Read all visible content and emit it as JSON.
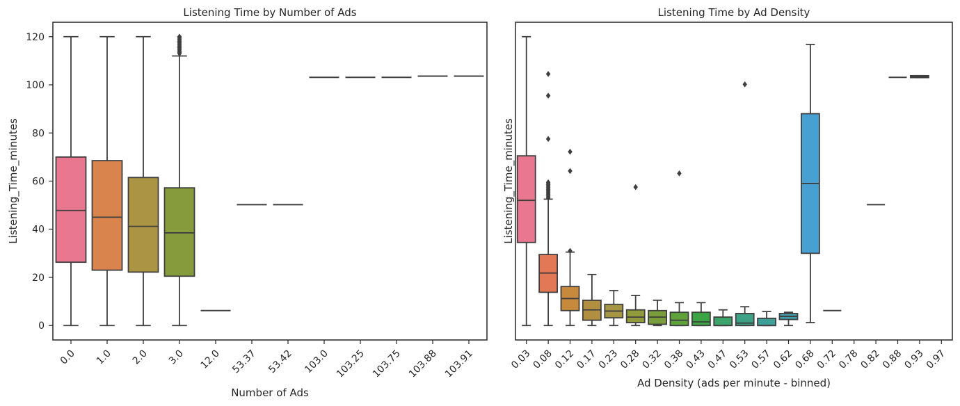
{
  "chart_data": [
    {
      "type": "boxplot",
      "title": "Listening Time by Number of Ads",
      "xlabel": "Number of Ads",
      "ylabel": "Listening_Time_minutes",
      "ylim": [
        -6,
        126
      ],
      "yticks": [
        0,
        20,
        40,
        60,
        80,
        100,
        120
      ],
      "grid": false,
      "categories": [
        "0.0",
        "1.0",
        "2.0",
        "3.0",
        "12.0",
        "53.37",
        "53.42",
        "103.0",
        "103.25",
        "103.75",
        "103.88",
        "103.91"
      ],
      "boxes": [
        {
          "category": "0.0",
          "whisker_low": 0,
          "q1": 26.3,
          "median": 47.8,
          "q3": 70.0,
          "whisker_high": 120,
          "color": "#e8778f"
        },
        {
          "category": "1.0",
          "whisker_low": 0,
          "q1": 23.0,
          "median": 45.0,
          "q3": 68.5,
          "whisker_high": 120,
          "color": "#d9834d"
        },
        {
          "category": "2.0",
          "whisker_low": 0,
          "q1": 22.2,
          "median": 41.2,
          "q3": 61.5,
          "whisker_high": 120,
          "color": "#ab9443"
        },
        {
          "category": "3.0",
          "whisker_low": 0,
          "q1": 20.5,
          "median": 38.5,
          "q3": 57.2,
          "whisker_high": 112,
          "color": "#859b3c",
          "outliers": [
            113,
            113.5,
            114,
            114.5,
            115,
            115.5,
            116,
            116.5,
            117,
            117.5,
            118,
            118.5,
            119,
            119.5,
            120
          ]
        },
        {
          "category": "12.0",
          "whisker_low": 6.2,
          "q1": 6.2,
          "median": 6.2,
          "q3": 6.2,
          "whisker_high": 6.2,
          "color": "#6aa03c"
        },
        {
          "category": "53.37",
          "whisker_low": 50.2,
          "q1": 50.2,
          "median": 50.2,
          "q3": 50.2,
          "whisker_high": 50.2,
          "color": "#3fa345"
        },
        {
          "category": "53.42",
          "whisker_low": 50.2,
          "q1": 50.2,
          "median": 50.2,
          "q3": 50.2,
          "whisker_high": 50.2,
          "color": "#3ca27d"
        },
        {
          "category": "103.0",
          "whisker_low": 103.1,
          "q1": 103.1,
          "median": 103.1,
          "q3": 103.1,
          "whisker_high": 103.1,
          "color": "#3ea093"
        },
        {
          "category": "103.25",
          "whisker_low": 103.1,
          "q1": 103.1,
          "median": 103.1,
          "q3": 103.1,
          "whisker_high": 103.1,
          "color": "#3f9ea6"
        },
        {
          "category": "103.75",
          "whisker_low": 103.1,
          "q1": 103.1,
          "median": 103.1,
          "q3": 103.1,
          "whisker_high": 103.1,
          "color": "#3e9fbc"
        },
        {
          "category": "103.88",
          "whisker_low": 103.6,
          "q1": 103.6,
          "median": 103.6,
          "q3": 103.6,
          "whisker_high": 103.6,
          "color": "#4698d5"
        },
        {
          "category": "103.91",
          "whisker_low": 103.6,
          "q1": 103.6,
          "median": 103.6,
          "q3": 103.6,
          "whisker_high": 103.6,
          "color": "#8d8fe3"
        }
      ]
    },
    {
      "type": "boxplot",
      "title": "Listening Time by Ad Density",
      "xlabel": "Ad Density (ads per minute - binned)",
      "ylabel": "Listening_Time_minutes",
      "ylim": [
        -6,
        126
      ],
      "yticks": [],
      "grid": false,
      "categories": [
        "0.03",
        "0.08",
        "0.12",
        "0.17",
        "0.23",
        "0.28",
        "0.32",
        "0.38",
        "0.43",
        "0.47",
        "0.53",
        "0.57",
        "0.62",
        "0.68",
        "0.72",
        "0.78",
        "0.82",
        "0.88",
        "0.93",
        "0.97"
      ],
      "boxes": [
        {
          "category": "0.03",
          "whisker_low": 0,
          "q1": 34.5,
          "median": 52.0,
          "q3": 70.5,
          "whisker_high": 120,
          "color": "#e8778f"
        },
        {
          "category": "0.08",
          "whisker_low": 0,
          "q1": 13.8,
          "median": 21.8,
          "q3": 29.5,
          "whisker_high": 52.5,
          "color": "#e27856",
          "outliers": [
            53,
            53.5,
            54,
            54.5,
            55,
            55.5,
            56,
            56.5,
            57,
            57.5,
            58,
            58.5,
            59,
            59.5,
            77.5,
            95.5,
            104.5
          ]
        },
        {
          "category": "0.12",
          "whisker_low": 0,
          "q1": 6.2,
          "median": 11.2,
          "q3": 16.2,
          "whisker_high": 30.5,
          "color": "#c7893c",
          "outliers": [
            31,
            64.2,
            72.2
          ]
        },
        {
          "category": "0.17",
          "whisker_low": 0,
          "q1": 2.2,
          "median": 6.5,
          "q3": 10.5,
          "whisker_high": 21.2,
          "color": "#b08f40"
        },
        {
          "category": "0.23",
          "whisker_low": 0,
          "q1": 3.2,
          "median": 6.0,
          "q3": 8.8,
          "whisker_high": 14.5,
          "color": "#a69643"
        },
        {
          "category": "0.28",
          "whisker_low": 0,
          "q1": 1.2,
          "median": 3.5,
          "q3": 6.5,
          "whisker_high": 12.5,
          "color": "#919b3b",
          "outliers": [
            57.5
          ]
        },
        {
          "category": "0.32",
          "whisker_low": 0,
          "q1": 0.5,
          "median": 3.5,
          "q3": 6.2,
          "whisker_high": 10.5,
          "color": "#7a9d3c"
        },
        {
          "category": "0.38",
          "whisker_low": 0,
          "q1": 0,
          "median": 2.2,
          "q3": 5.5,
          "whisker_high": 9.5,
          "color": "#5fa23c",
          "outliers": [
            63.2
          ]
        },
        {
          "category": "0.43",
          "whisker_low": 0,
          "q1": 0,
          "median": 1.5,
          "q3": 5.5,
          "whisker_high": 9.5,
          "color": "#3da446"
        },
        {
          "category": "0.47",
          "whisker_low": 0,
          "q1": 0,
          "median": 0,
          "q3": 3.5,
          "whisker_high": 6.5,
          "color": "#3ca36a"
        },
        {
          "category": "0.53",
          "whisker_low": 0,
          "q1": 0,
          "median": 1.0,
          "q3": 5.0,
          "whisker_high": 7.8,
          "color": "#3ca185",
          "outliers": [
            100.2
          ]
        },
        {
          "category": "0.57",
          "whisker_low": 0,
          "q1": 0,
          "median": 0,
          "q3": 3.0,
          "whisker_high": 5.8,
          "color": "#3d9f98"
        },
        {
          "category": "0.62",
          "whisker_low": 0,
          "q1": 2.5,
          "median": 3.8,
          "q3": 5.0,
          "whisker_high": 5.5,
          "color": "#3ea0ac"
        },
        {
          "category": "0.68",
          "whisker_low": 1.2,
          "q1": 30.0,
          "median": 59.0,
          "q3": 88.0,
          "whisker_high": 116.8,
          "color": "#47a0d2"
        },
        {
          "category": "0.72",
          "whisker_low": 6.2,
          "q1": 6.2,
          "median": 6.2,
          "q3": 6.2,
          "whisker_high": 6.2,
          "color": "#7f98df"
        },
        {
          "category": "0.82",
          "whisker_low": 50.2,
          "q1": 50.2,
          "median": 50.2,
          "q3": 50.2,
          "whisker_high": 50.2,
          "color": "#b88ae0"
        },
        {
          "category": "0.88",
          "whisker_low": 103.1,
          "q1": 103.1,
          "median": 103.1,
          "q3": 103.1,
          "whisker_high": 103.1,
          "color": "#d587d4"
        },
        {
          "category": "0.93",
          "whisker_low": 103.0,
          "q1": 103.0,
          "median": 103.4,
          "q3": 103.8,
          "whisker_high": 103.8,
          "color": "#e27cb8"
        }
      ]
    }
  ]
}
